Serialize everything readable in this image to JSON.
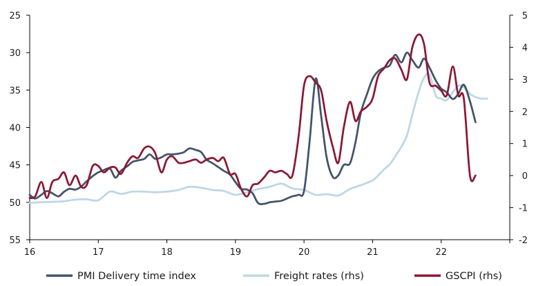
{
  "chart_data": {
    "type": "line",
    "title": "",
    "xlabel": "",
    "ylabel_left": "",
    "ylabel_right": "",
    "x_ticks": [
      "16",
      "17",
      "18",
      "19",
      "20",
      "21",
      "22"
    ],
    "x_range": [
      2016.0,
      2023.0
    ],
    "left_axis": {
      "ticks": [
        "25",
        "30",
        "35",
        "40",
        "45",
        "50",
        "55"
      ],
      "range": [
        25,
        55
      ],
      "inverted": true
    },
    "right_axis": {
      "ticks": [
        "5",
        "4",
        "3",
        "2",
        "1",
        "0",
        "-1",
        "-2"
      ],
      "range": [
        -2,
        5
      ],
      "inverted": false
    },
    "grid": false,
    "legend_position": "bottom",
    "series": [
      {
        "name": "PMI Delivery time index",
        "axis": "left",
        "color": "#44546a",
        "x": [
          2016.0,
          2016.08,
          2016.17,
          2016.25,
          2016.33,
          2016.42,
          2016.5,
          2016.58,
          2016.67,
          2016.75,
          2016.83,
          2016.92,
          2017.0,
          2017.08,
          2017.17,
          2017.25,
          2017.33,
          2017.42,
          2017.5,
          2017.58,
          2017.67,
          2017.75,
          2017.83,
          2017.92,
          2018.0,
          2018.08,
          2018.17,
          2018.25,
          2018.33,
          2018.42,
          2018.5,
          2018.58,
          2018.67,
          2018.75,
          2018.83,
          2018.92,
          2019.0,
          2019.08,
          2019.17,
          2019.25,
          2019.33,
          2019.42,
          2019.5,
          2019.58,
          2019.67,
          2019.75,
          2019.83,
          2019.92,
          2020.0,
          2020.08,
          2020.17,
          2020.25,
          2020.33,
          2020.42,
          2020.5,
          2020.58,
          2020.67,
          2020.75,
          2020.83,
          2020.92,
          2021.0,
          2021.08,
          2021.17,
          2021.25,
          2021.33,
          2021.42,
          2021.5,
          2021.58,
          2021.67,
          2021.75,
          2021.83,
          2021.92,
          2022.0,
          2022.08,
          2022.17,
          2022.25,
          2022.33,
          2022.42,
          2022.5
        ],
        "values": [
          49.0,
          49.5,
          49.0,
          48.5,
          48.8,
          49.2,
          48.6,
          48.2,
          48.3,
          47.9,
          47.2,
          46.5,
          46.0,
          45.7,
          45.5,
          46.7,
          45.8,
          45.2,
          44.6,
          44.4,
          44.2,
          43.6,
          44.2,
          44.0,
          43.6,
          43.6,
          43.5,
          43.3,
          42.8,
          43.0,
          43.3,
          44.3,
          44.8,
          45.3,
          45.8,
          46.3,
          47.3,
          48.2,
          48.3,
          48.8,
          50.1,
          50.2,
          50.0,
          49.9,
          49.8,
          49.5,
          49.2,
          49.0,
          48.5,
          42.0,
          33.5,
          38.5,
          44.0,
          46.6,
          46.4,
          45.0,
          44.8,
          42.0,
          38.0,
          35.5,
          33.5,
          32.5,
          32.0,
          31.7,
          30.3,
          31.3,
          30.0,
          31.0,
          32.0,
          30.8,
          32.0,
          33.7,
          34.8,
          35.3,
          36.2,
          35.5,
          34.3,
          36.5,
          39.3
        ]
      },
      {
        "name": "Freight rates (rhs)",
        "axis": "right",
        "color": "#bdd7e7",
        "x": [
          2016.0,
          2016.17,
          2016.33,
          2016.5,
          2016.67,
          2016.83,
          2017.0,
          2017.17,
          2017.33,
          2017.5,
          2017.67,
          2017.83,
          2018.0,
          2018.17,
          2018.33,
          2018.5,
          2018.67,
          2018.83,
          2019.0,
          2019.17,
          2019.33,
          2019.5,
          2019.67,
          2019.83,
          2020.0,
          2020.17,
          2020.33,
          2020.5,
          2020.67,
          2020.83,
          2021.0,
          2021.08,
          2021.17,
          2021.25,
          2021.33,
          2021.42,
          2021.5,
          2021.58,
          2021.67,
          2021.75,
          2021.83,
          2021.92,
          2022.0,
          2022.08,
          2022.17,
          2022.25,
          2022.33,
          2022.42,
          2022.5,
          2022.58,
          2022.67
        ],
        "values": [
          -0.85,
          -0.83,
          -0.82,
          -0.8,
          -0.75,
          -0.74,
          -0.77,
          -0.5,
          -0.57,
          -0.5,
          -0.5,
          -0.52,
          -0.5,
          -0.45,
          -0.35,
          -0.38,
          -0.45,
          -0.48,
          -0.6,
          -0.52,
          -0.42,
          -0.35,
          -0.25,
          -0.4,
          -0.45,
          -0.6,
          -0.58,
          -0.62,
          -0.42,
          -0.3,
          -0.15,
          0.0,
          0.2,
          0.35,
          0.6,
          0.9,
          1.25,
          1.9,
          2.6,
          3.05,
          3.15,
          2.5,
          2.4,
          2.35,
          2.6,
          2.8,
          2.75,
          2.55,
          2.45,
          2.4,
          2.4
        ]
      },
      {
        "name": "GSCPI (rhs)",
        "axis": "right",
        "color": "#8b1a35",
        "x": [
          2016.0,
          2016.08,
          2016.17,
          2016.25,
          2016.33,
          2016.42,
          2016.5,
          2016.58,
          2016.67,
          2016.75,
          2016.83,
          2016.92,
          2017.0,
          2017.08,
          2017.17,
          2017.25,
          2017.33,
          2017.42,
          2017.5,
          2017.58,
          2017.67,
          2017.75,
          2017.83,
          2017.92,
          2018.0,
          2018.08,
          2018.17,
          2018.25,
          2018.33,
          2018.42,
          2018.5,
          2018.58,
          2018.67,
          2018.75,
          2018.83,
          2018.92,
          2019.0,
          2019.08,
          2019.17,
          2019.25,
          2019.33,
          2019.42,
          2019.5,
          2019.58,
          2019.67,
          2019.75,
          2019.83,
          2019.92,
          2020.0,
          2020.08,
          2020.17,
          2020.25,
          2020.33,
          2020.42,
          2020.5,
          2020.58,
          2020.67,
          2020.75,
          2020.83,
          2020.92,
          2021.0,
          2021.08,
          2021.17,
          2021.25,
          2021.33,
          2021.42,
          2021.5,
          2021.58,
          2021.67,
          2021.75,
          2021.83,
          2021.92,
          2022.0,
          2022.08,
          2022.17,
          2022.25,
          2022.33,
          2022.42,
          2022.5
        ],
        "values": [
          -0.7,
          -0.65,
          -0.2,
          -0.7,
          -0.2,
          -0.1,
          0.1,
          -0.3,
          0.0,
          -0.35,
          -0.3,
          0.3,
          0.3,
          0.1,
          0.25,
          0.25,
          0.05,
          0.4,
          0.6,
          0.55,
          0.85,
          0.9,
          0.7,
          0.1,
          0.5,
          0.6,
          0.4,
          0.4,
          0.45,
          0.5,
          0.4,
          0.5,
          0.55,
          0.45,
          0.55,
          0.05,
          0.05,
          -0.4,
          -0.65,
          -0.3,
          -0.25,
          -0.05,
          0.15,
          0.1,
          0.15,
          0.05,
          0.0,
          1.2,
          2.8,
          3.1,
          2.9,
          2.65,
          1.7,
          0.9,
          0.4,
          1.5,
          2.3,
          1.7,
          2.0,
          2.15,
          2.4,
          3.1,
          3.35,
          3.6,
          3.65,
          3.3,
          3.0,
          4.0,
          4.4,
          4.1,
          2.9,
          2.8,
          2.65,
          2.5,
          3.4,
          2.5,
          2.4,
          0.0,
          0.0
        ]
      }
    ]
  },
  "legend": {
    "items": [
      {
        "label": "PMI Delivery time index",
        "color": "#44546a"
      },
      {
        "label": "Freight rates (rhs)",
        "color": "#bdd7e7"
      },
      {
        "label": "GSCPI (rhs)",
        "color": "#8b1a35"
      }
    ]
  }
}
